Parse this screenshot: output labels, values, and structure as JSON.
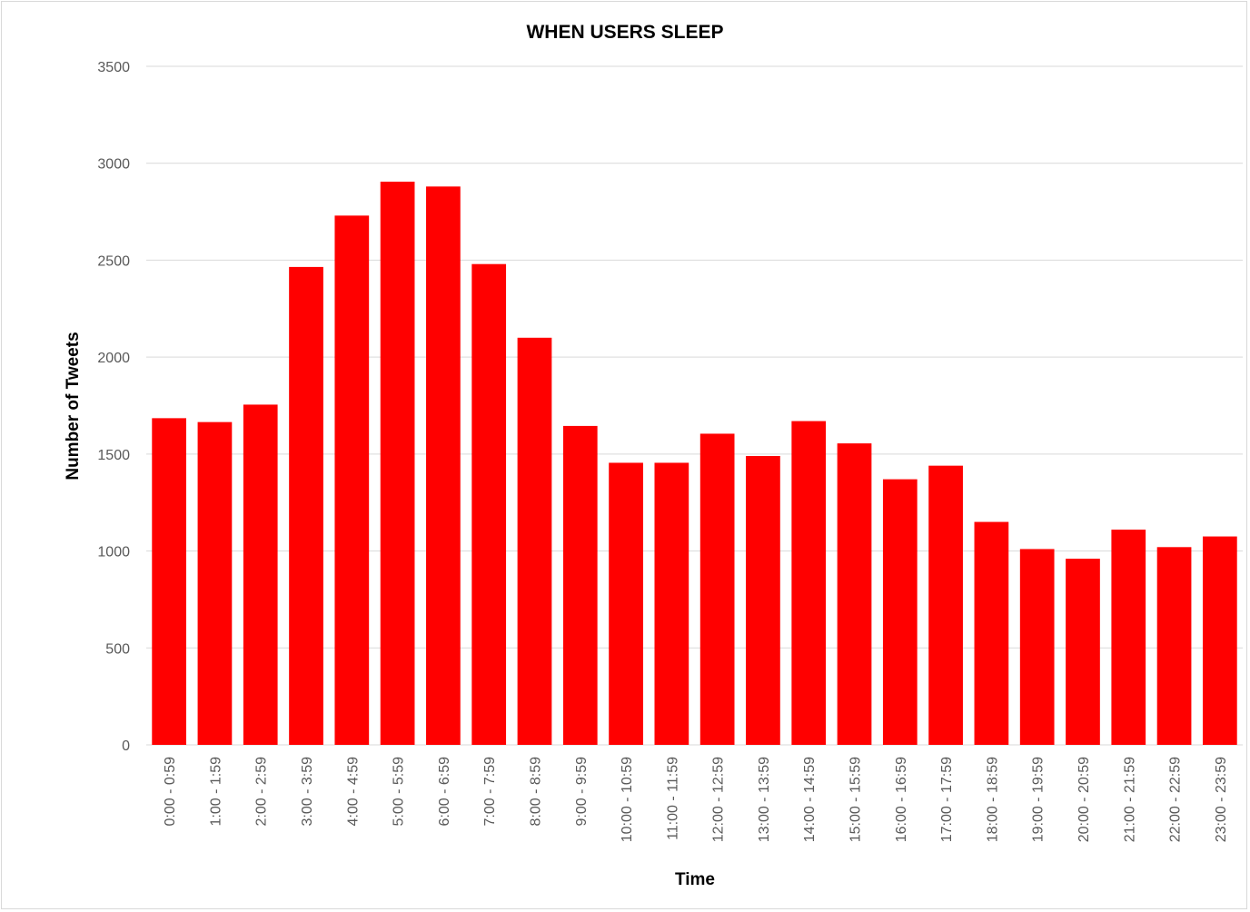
{
  "chart_data": {
    "type": "bar",
    "title": "WHEN USERS SLEEP",
    "xlabel": "Time",
    "ylabel": "Number of  Tweets",
    "ylim": [
      0,
      3500
    ],
    "yticks": [
      "0",
      "500",
      "1000",
      "1500",
      "2000",
      "2500",
      "3000",
      "3500"
    ],
    "grid": true,
    "bar_color": "#ff0000",
    "categories": [
      "0:00 - 0:59",
      "1:00 - 1:59",
      "2:00 - 2:59",
      "3:00 - 3:59",
      "4:00 - 4:59",
      "5:00 - 5:59",
      "6:00 - 6:59",
      "7:00 - 7:59",
      "8:00 - 8:59",
      "9:00 - 9:59",
      "10:00 - 10:59",
      "11:00 - 11:59",
      "12:00 - 12:59",
      "13:00 - 13:59",
      "14:00 - 14:59",
      "15:00 - 15:59",
      "16:00 - 16:59",
      "17:00 - 17:59",
      "18:00 - 18:59",
      "19:00 - 19:59",
      "20:00 - 20:59",
      "21:00 - 21:59",
      "22:00 - 22:59",
      "23:00 - 23:59"
    ],
    "values": [
      1685,
      1665,
      1755,
      2465,
      2730,
      2905,
      2880,
      2480,
      2100,
      1645,
      1455,
      1455,
      1605,
      1490,
      1670,
      1555,
      1370,
      1440,
      1150,
      1010,
      960,
      1110,
      1020,
      1075
    ]
  }
}
